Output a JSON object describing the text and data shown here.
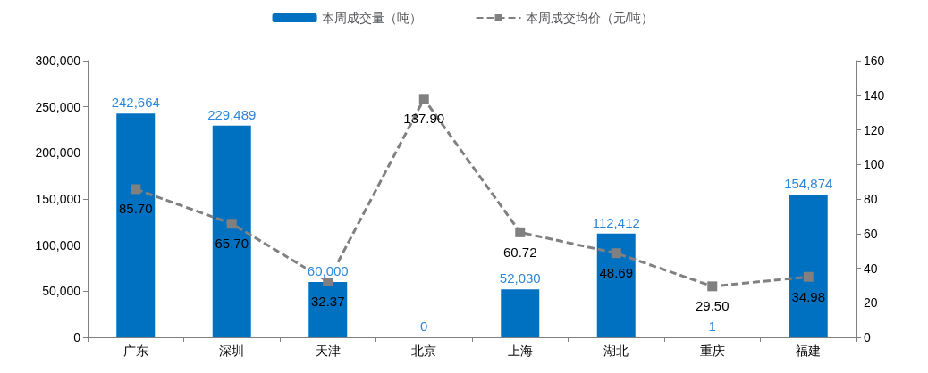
{
  "chart_data": {
    "type": "bar",
    "categories": [
      "广东",
      "深圳",
      "天津",
      "北京",
      "上海",
      "湖北",
      "重庆",
      "福建"
    ],
    "series": [
      {
        "name": "本周成交量（吨）",
        "color": "#0070c0",
        "values": [
          242664,
          229489,
          60000,
          0,
          52030,
          112412,
          1,
          154874
        ],
        "value_labels": [
          "242,664",
          "229,489",
          "60,000",
          "0",
          "52,030",
          "112,412",
          "1",
          "154,874"
        ]
      },
      {
        "name": "本周成交均价（元/吨）",
        "type": "line",
        "axis": "y2",
        "color": "#808080",
        "marker": "square",
        "line_style": "dashed",
        "values": [
          85.7,
          65.7,
          32.37,
          137.9,
          60.72,
          48.69,
          29.5,
          34.98
        ],
        "value_labels": [
          "85.70",
          "65.70",
          "32.37",
          "137.90",
          "60.72",
          "48.69",
          "29.50",
          "34.98"
        ]
      }
    ],
    "ylim": [
      0,
      300000
    ],
    "yticks": [
      {
        "value": 0,
        "label": "0"
      },
      {
        "value": 50000,
        "label": "50,000"
      },
      {
        "value": 100000,
        "label": "100,000"
      },
      {
        "value": 150000,
        "label": "150,000"
      },
      {
        "value": 200000,
        "label": "200,000"
      },
      {
        "value": 250000,
        "label": "250,000"
      },
      {
        "value": 300000,
        "label": "300,000"
      }
    ],
    "y2lim": [
      0,
      160
    ],
    "y2ticks": [
      0,
      20,
      40,
      60,
      80,
      100,
      120,
      140,
      160
    ],
    "legend": "top",
    "grid": false
  }
}
